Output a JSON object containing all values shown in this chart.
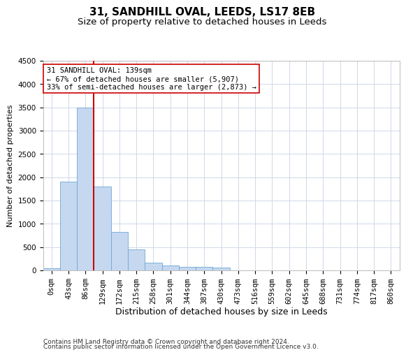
{
  "title1": "31, SANDHILL OVAL, LEEDS, LS17 8EB",
  "title2": "Size of property relative to detached houses in Leeds",
  "xlabel": "Distribution of detached houses by size in Leeds",
  "ylabel": "Number of detached properties",
  "categories": [
    "0sqm",
    "43sqm",
    "86sqm",
    "129sqm",
    "172sqm",
    "215sqm",
    "258sqm",
    "301sqm",
    "344sqm",
    "387sqm",
    "430sqm",
    "473sqm",
    "516sqm",
    "559sqm",
    "602sqm",
    "645sqm",
    "688sqm",
    "731sqm",
    "774sqm",
    "817sqm",
    "860sqm"
  ],
  "values": [
    50,
    1900,
    3500,
    1800,
    830,
    450,
    160,
    100,
    80,
    70,
    55,
    0,
    0,
    0,
    0,
    0,
    0,
    0,
    0,
    0,
    0
  ],
  "bar_color": "#c5d8f0",
  "bar_edge_color": "#6fa8d4",
  "vline_x_index": 3,
  "vline_color": "#cc0000",
  "annotation_line1": "31 SANDHILL OVAL: 139sqm",
  "annotation_line2": "← 67% of detached houses are smaller (5,907)",
  "annotation_line3": "33% of semi-detached houses are larger (2,873) →",
  "annotation_box_color": "#ffffff",
  "annotation_box_edge": "#cc0000",
  "ylim": [
    0,
    4500
  ],
  "yticks": [
    0,
    500,
    1000,
    1500,
    2000,
    2500,
    3000,
    3500,
    4000,
    4500
  ],
  "footer1": "Contains HM Land Registry data © Crown copyright and database right 2024.",
  "footer2": "Contains public sector information licensed under the Open Government Licence v3.0.",
  "bg_color": "#ffffff",
  "grid_color": "#d0d8e8",
  "title1_fontsize": 11,
  "title2_fontsize": 9.5,
  "xlabel_fontsize": 9,
  "ylabel_fontsize": 8,
  "tick_fontsize": 7.5,
  "footer_fontsize": 6.5,
  "annot_fontsize": 7.5
}
